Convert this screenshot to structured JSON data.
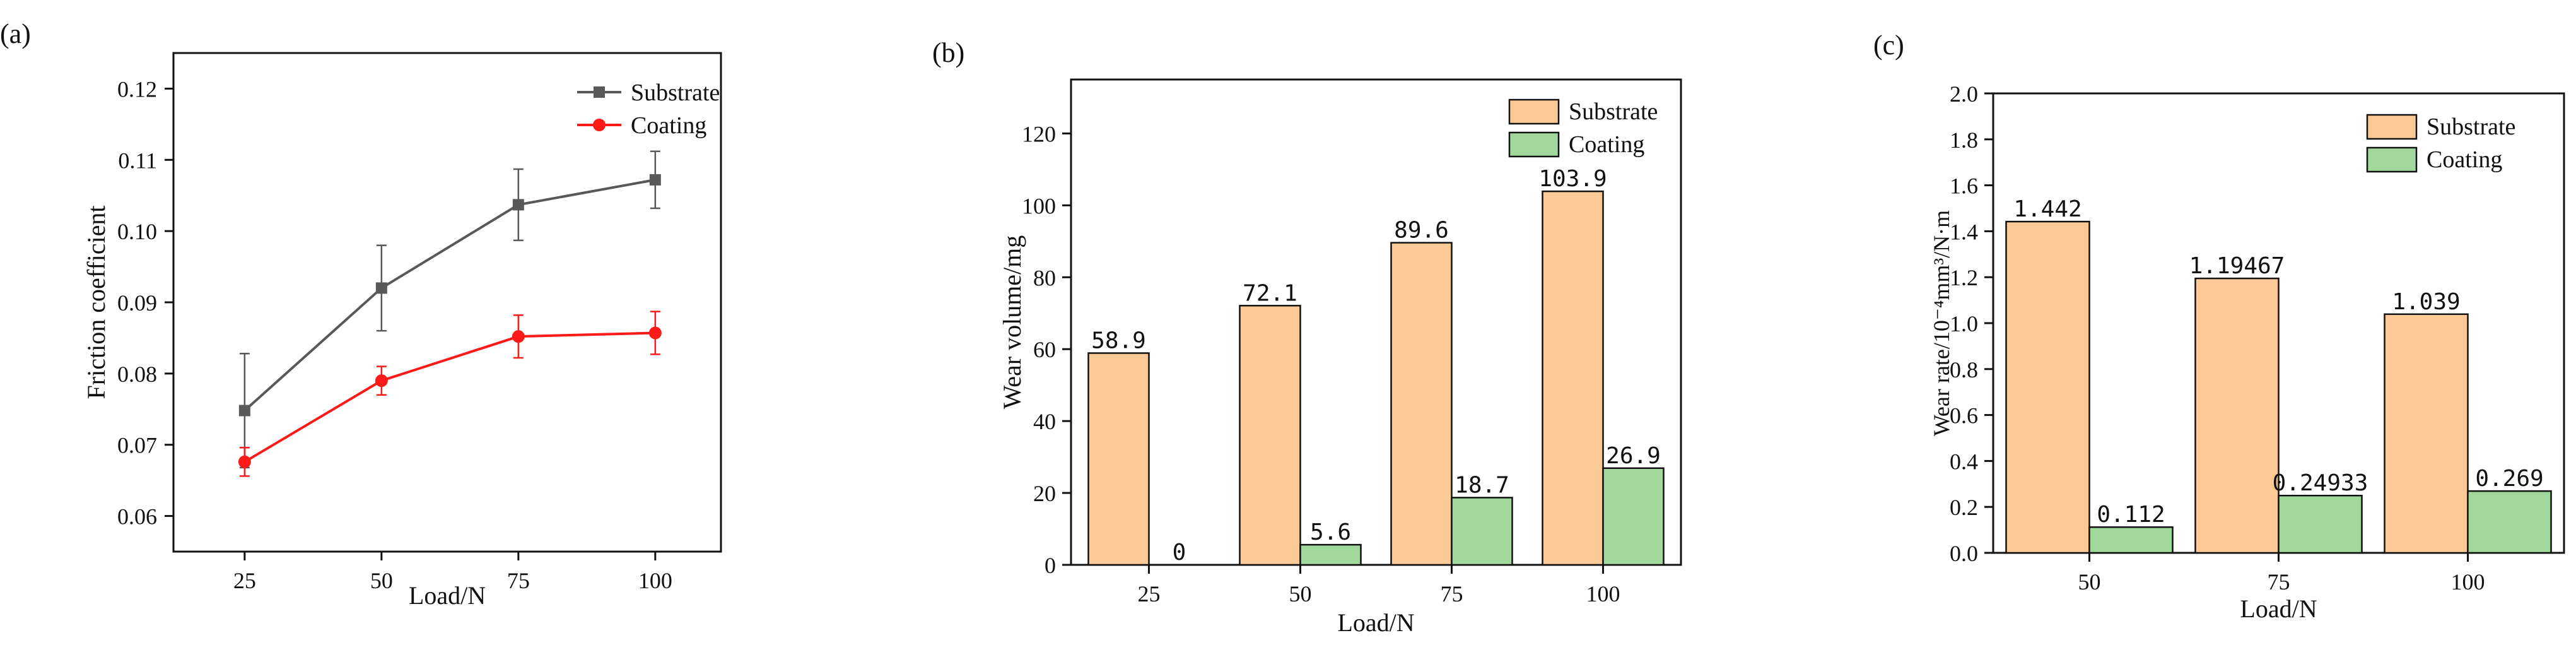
{
  "colors": {
    "substrate_line": "#595959",
    "coating_line": "#ff1a1a",
    "substrate_bar": "#fdc997",
    "coating_bar": "#9fd89a",
    "axis": "#111111"
  },
  "chart_data": [
    {
      "panel_label": "(a)",
      "type": "line",
      "title": "",
      "xlabel": "Load/N",
      "ylabel": "Friction coefficient",
      "x": [
        25,
        50,
        75,
        100
      ],
      "x_tick_labels": [
        "25",
        "50",
        "75",
        "100"
      ],
      "xlim": [
        12,
        112
      ],
      "ylim": [
        0.055,
        0.125
      ],
      "y_ticks": [
        0.06,
        0.07,
        0.08,
        0.09,
        0.1,
        0.11,
        0.12
      ],
      "y_tick_labels": [
        "0.06",
        "0.07",
        "0.08",
        "0.09",
        "0.10",
        "0.11",
        "0.12"
      ],
      "legend_position": "top-right",
      "series": [
        {
          "name": "Substrate",
          "marker": "square",
          "values": [
            0.0748,
            0.092,
            0.1037,
            0.1072
          ],
          "errors": [
            0.008,
            0.006,
            0.005,
            0.004
          ]
        },
        {
          "name": "Coating",
          "marker": "circle",
          "values": [
            0.0676,
            0.079,
            0.0852,
            0.0857
          ],
          "errors": [
            0.002,
            0.002,
            0.003,
            0.003
          ]
        }
      ]
    },
    {
      "panel_label": "(b)",
      "type": "bar",
      "title": "",
      "xlabel": "Load/N",
      "ylabel": "Wear volume/mg",
      "categories": [
        "25",
        "50",
        "75",
        "100"
      ],
      "ylim": [
        0,
        135
      ],
      "y_ticks": [
        0,
        20,
        40,
        60,
        80,
        100,
        120
      ],
      "y_tick_labels": [
        "0",
        "20",
        "40",
        "60",
        "80",
        "100",
        "120"
      ],
      "legend_position": "top-right",
      "series": [
        {
          "name": "Substrate",
          "values": [
            58.9,
            72.1,
            89.6,
            103.9
          ],
          "labels": [
            "58.9",
            "72.1",
            "89.6",
            "103.9"
          ]
        },
        {
          "name": "Coating",
          "values": [
            0,
            5.6,
            18.7,
            26.9
          ],
          "labels": [
            "0",
            "5.6",
            "18.7",
            "26.9"
          ]
        }
      ]
    },
    {
      "panel_label": "(c)",
      "type": "bar",
      "title": "",
      "xlabel": "Load/N",
      "ylabel": "Wear rate/10⁻⁴mm³/N·m",
      "categories": [
        "50",
        "75",
        "100"
      ],
      "ylim": [
        0,
        2.0
      ],
      "y_ticks": [
        0,
        0.2,
        0.4,
        0.6,
        0.8,
        1.0,
        1.2,
        1.4,
        1.6,
        1.8,
        2.0
      ],
      "y_tick_labels": [
        "0.0",
        "0.2",
        "0.4",
        "0.6",
        "0.8",
        "1.0",
        "1.2",
        "1.4",
        "1.6",
        "1.8",
        "2.0"
      ],
      "legend_position": "top-right",
      "series": [
        {
          "name": "Substrate",
          "values": [
            1.442,
            1.19467,
            1.039
          ],
          "labels": [
            "1.442",
            "1.19467",
            "1.039"
          ]
        },
        {
          "name": "Coating",
          "values": [
            0.112,
            0.24933,
            0.269
          ],
          "labels": [
            "0.112",
            "0.24933",
            "0.269"
          ]
        }
      ]
    }
  ]
}
